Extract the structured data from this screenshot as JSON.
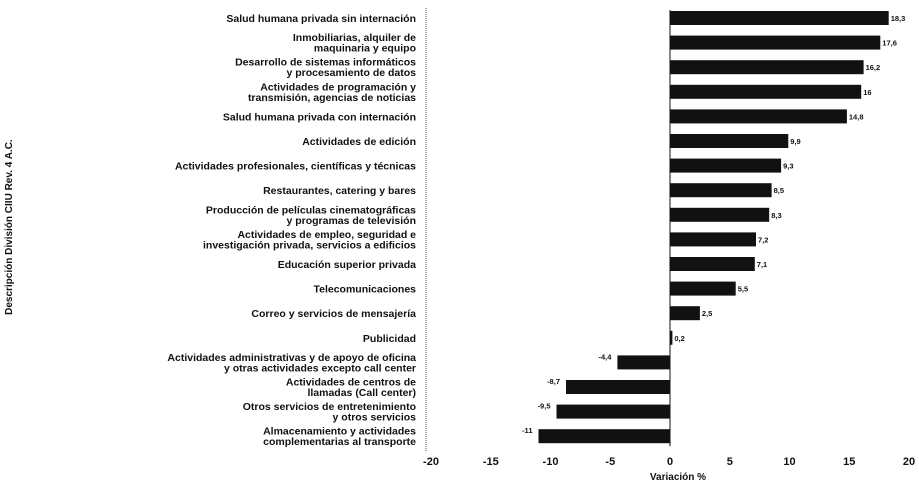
{
  "chart_data": {
    "type": "bar",
    "orientation": "horizontal",
    "categories": [
      [
        "Salud humana privada sin internación"
      ],
      [
        "Inmobiliarias, alquiler de",
        "maquinaria y equipo"
      ],
      [
        "Desarrollo de sistemas informáticos",
        "y procesamiento de datos"
      ],
      [
        "Actividades de programación y",
        "transmisión, agencias de noticias"
      ],
      [
        "Salud humana privada con internación"
      ],
      [
        "Actividades de edición"
      ],
      [
        "Actividades profesionales, científicas y técnicas"
      ],
      [
        "Restaurantes, catering y bares"
      ],
      [
        "Producción de películas cinematográficas",
        "y programas de televisión"
      ],
      [
        "Actividades de empleo, seguridad e",
        "investigación privada, servicios a edificios"
      ],
      [
        "Educación superior privada"
      ],
      [
        "Telecomunicaciones"
      ],
      [
        "Correo y servicios de mensajería"
      ],
      [
        "Publicidad"
      ],
      [
        "Actividades administrativas y de apoyo de oficina",
        "y otras actividades excepto call center"
      ],
      [
        "Actividades de centros de",
        "llamadas (Call center)"
      ],
      [
        "Otros servicios de entretenimiento",
        "y otros servicios"
      ],
      [
        "Almacenamiento y actividades",
        "complementarias al transporte"
      ]
    ],
    "values": [
      18.3,
      17.6,
      16.2,
      16,
      14.8,
      9.9,
      9.3,
      8.5,
      8.3,
      7.2,
      7.1,
      5.5,
      2.5,
      0.2,
      -4.4,
      -8.7,
      -9.5,
      -11
    ],
    "value_labels": [
      "18,3",
      "17,6",
      "16,2",
      "16",
      "14,8",
      "9,9",
      "9,3",
      "8,5",
      "8,3",
      "7,2",
      "7,1",
      "5,5",
      "2,5",
      "0,2",
      "-4,4",
      "-8,7",
      "-9,5",
      "-11"
    ],
    "xlabel": "Variación %",
    "ylabel": "Descripción División CIIU Rev. 4 A.C.",
    "xlim": [
      -20,
      20
    ],
    "xticks": [
      -20,
      -15,
      -10,
      -5,
      0,
      5,
      10,
      15,
      20
    ],
    "bar_color": "#111111",
    "grid": false,
    "legend": "none"
  }
}
